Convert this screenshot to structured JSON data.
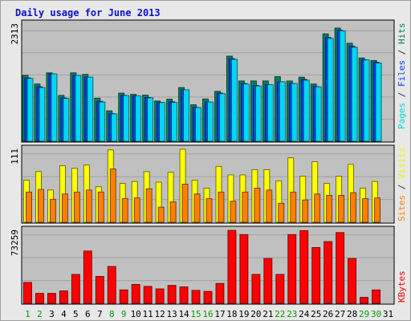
{
  "chart_data": {
    "type": "bar",
    "title": "Daily usage for June 2013",
    "categories": [
      "1",
      "2",
      "3",
      "4",
      "5",
      "6",
      "7",
      "8",
      "9",
      "10",
      "11",
      "12",
      "13",
      "14",
      "15",
      "16",
      "17",
      "18",
      "19",
      "20",
      "21",
      "22",
      "23",
      "24",
      "25",
      "26",
      "27",
      "28",
      "29",
      "30",
      "31"
    ],
    "weekend_days": [
      "1",
      "2",
      "8",
      "9",
      "15",
      "16",
      "22",
      "23",
      "29",
      "30"
    ],
    "panels": [
      {
        "name": "pages-files-hits",
        "ymax_label": "2313",
        "ymax": 2313,
        "legend": [
          {
            "text": "Pages",
            "color": "#00d8d8"
          },
          {
            "text": " / ",
            "color": "#303030"
          },
          {
            "text": "Files",
            "color": "#0040ff"
          },
          {
            "text": " / ",
            "color": "#303030"
          },
          {
            "text": "Hits",
            "color": "#008060"
          }
        ],
        "series": [
          {
            "name": "Hits",
            "color": "#008060",
            "values": [
              1300,
              1130,
              1350,
              905,
              1350,
              1320,
              850,
              600,
              950,
              925,
              910,
              795,
              830,
              1060,
              720,
              835,
              985,
              1680,
              1190,
              1190,
              1190,
              1275,
              1190,
              1265,
              1130,
              2120,
              2235,
              1935,
              1645,
              1595,
              0
            ]
          },
          {
            "name": "Files",
            "color": "#0040ff",
            "values": [
              1250,
              1075,
              1330,
              855,
              1300,
              1265,
              790,
              545,
              905,
              895,
              865,
              765,
              780,
              1015,
              670,
              775,
              950,
              1630,
              1140,
              1100,
              1115,
              1175,
              1140,
              1220,
              1080,
              2050,
              2190,
              1875,
              1610,
              1560,
              0
            ]
          },
          {
            "name": "Pages",
            "color": "#00d8f0",
            "values": [
              1240,
              1060,
              1330,
              845,
              1300,
              1265,
              775,
              540,
              900,
              895,
              855,
              765,
              765,
              1015,
              665,
              775,
              940,
              1615,
              1130,
              1090,
              1115,
              1175,
              1140,
              1205,
              1075,
              2030,
              2180,
              1855,
              1605,
              1545,
              0
            ]
          }
        ]
      },
      {
        "name": "visits-sites",
        "ymax_label": "111",
        "ymax": 111,
        "legend": [
          {
            "text": "Sites",
            "color": "#ff8000"
          },
          {
            "text": " / ",
            "color": "#303030"
          },
          {
            "text": "Visits",
            "color": "#f0f000"
          }
        ],
        "series": [
          {
            "name": "Visits",
            "color": "#ffff00",
            "values": [
              64,
              77,
              49,
              86,
              82,
              87,
              54,
              110,
              59,
              62,
              77,
              61,
              76,
              111,
              64,
              52,
              85,
              72,
              72,
              80,
              80,
              63,
              98,
              70,
              92,
              59,
              70,
              88,
              52,
              62,
              0
            ]
          },
          {
            "name": "Sites",
            "color": "#ff8000",
            "values": [
              46,
              50,
              35,
              43,
              46,
              49,
              46,
              81,
              36,
              37,
              51,
              23,
              31,
              58,
              43,
              36,
              46,
              32,
              46,
              52,
              49,
              29,
              46,
              34,
              43,
              41,
              41,
              45,
              36,
              37,
              0
            ]
          }
        ]
      },
      {
        "name": "kbytes",
        "ymax_label": "73259",
        "ymax": 73259,
        "legend": [
          {
            "text": "KBytes",
            "color": "#ff0000"
          }
        ],
        "series": [
          {
            "name": "KBytes",
            "color": "#ff0000",
            "values": [
              21000,
              10000,
              10000,
              12500,
              29000,
              52500,
              27000,
              37000,
              13500,
              19000,
              17000,
              14500,
              18000,
              16500,
              13000,
              12000,
              20000,
              73259,
              69000,
              29000,
              45000,
              29000,
              69000,
              73000,
              56000,
              62000,
              71000,
              45000,
              6000,
              13500,
              0
            ]
          }
        ]
      }
    ]
  }
}
